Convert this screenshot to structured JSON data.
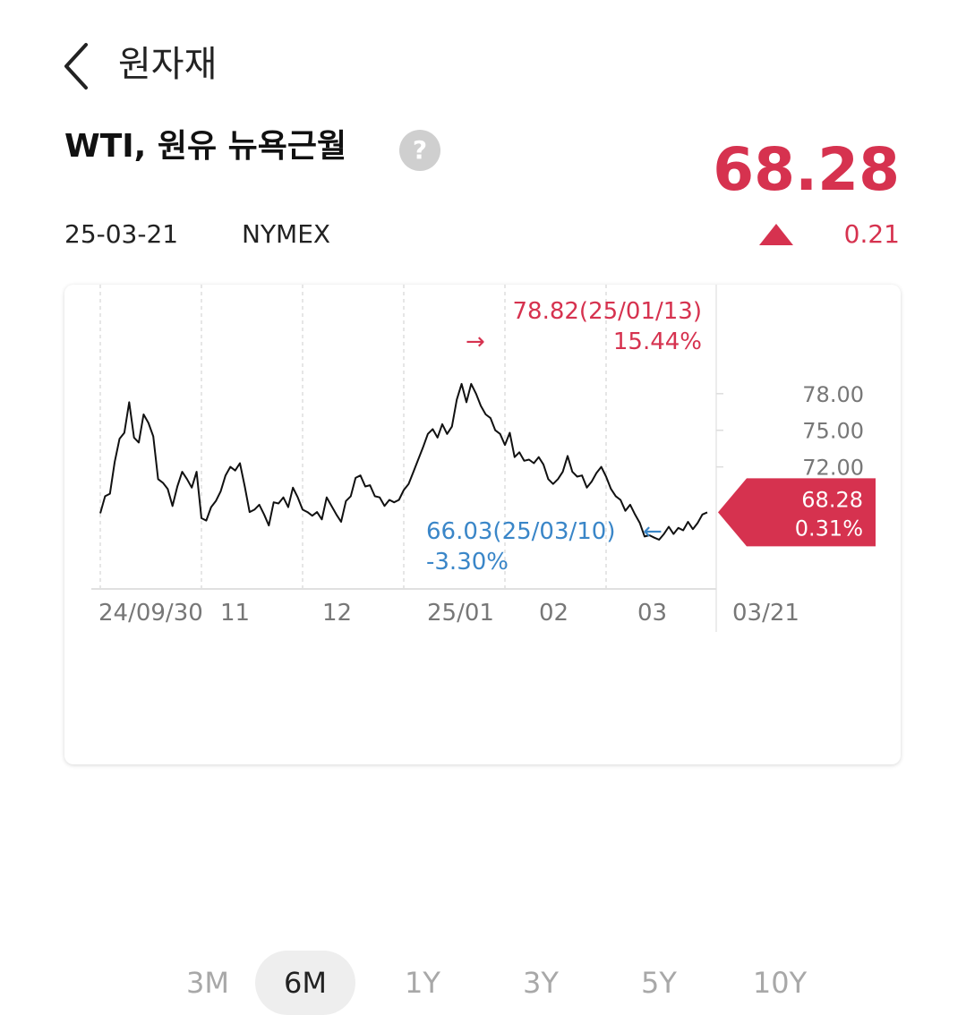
{
  "header": {
    "title": "원자재"
  },
  "instrument": {
    "name": "WTI, 원유 뉴욕근월",
    "help_label": "?",
    "price": "68.28",
    "date": "25-03-21",
    "exchange": "NYMEX",
    "change": "0.21",
    "change_direction_icon": "triangle-up-icon"
  },
  "colors": {
    "up": "#d6324f",
    "down": "#3a86c8",
    "line": "#111111",
    "grid": "#dddddd",
    "axis_text": "#777777"
  },
  "chart_data": {
    "type": "line",
    "x_tick_labels": [
      "24/09/30",
      "11",
      "12",
      "25/01",
      "02",
      "03",
      "03/21"
    ],
    "y_tick_labels": [
      "78.00",
      "75.00",
      "72.00"
    ],
    "y_ticks": [
      78,
      75,
      72
    ],
    "ylim": [
      62,
      84
    ],
    "series": [
      {
        "values": [
          68.2,
          69.6,
          69.8,
          72.4,
          74.3,
          74.8,
          77.3,
          74.4,
          74.0,
          76.3,
          75.6,
          74.5,
          71.0,
          70.7,
          70.2,
          68.8,
          70.4,
          71.6,
          71.0,
          70.3,
          71.6,
          67.8,
          67.6,
          68.7,
          69.2,
          70.0,
          71.3,
          72.0,
          71.7,
          72.3,
          70.4,
          68.3,
          68.5,
          68.9,
          68.1,
          67.2,
          69.1,
          69.0,
          69.5,
          68.7,
          70.3,
          69.5,
          68.5,
          68.3,
          68.0,
          68.3,
          67.7,
          69.5,
          68.8,
          68.1,
          67.5,
          69.2,
          69.6,
          71.1,
          71.3,
          70.4,
          70.5,
          69.6,
          69.5,
          68.8,
          69.3,
          69.1,
          69.3,
          70.1,
          70.6,
          71.6,
          72.6,
          73.6,
          74.7,
          75.1,
          74.4,
          75.5,
          74.7,
          75.3,
          77.5,
          78.8,
          77.3,
          78.8,
          78.0,
          77.0,
          76.3,
          76.0,
          75.0,
          74.7,
          73.8,
          74.8,
          72.8,
          73.2,
          72.5,
          72.6,
          72.3,
          72.8,
          72.2,
          71.0,
          70.6,
          71.0,
          71.6,
          72.9,
          71.6,
          71.2,
          71.3,
          70.3,
          70.8,
          71.5,
          72.0,
          71.2,
          70.2,
          69.6,
          69.3,
          68.4,
          68.9,
          68.1,
          67.4,
          66.3,
          66.4,
          66.2,
          66.03,
          66.5,
          67.1,
          66.5,
          67.0,
          66.8,
          67.5,
          66.9,
          67.4,
          68.1,
          68.28
        ]
      }
    ],
    "high": {
      "value": 78.82,
      "label": "78.82(25/01/13)",
      "pct": "15.44%"
    },
    "low": {
      "value": 66.03,
      "label": "66.03(25/03/10)",
      "pct": "-3.30%"
    },
    "current": {
      "value": 68.28,
      "label": "68.28",
      "pct": "0.31%"
    },
    "arrow_right": "→",
    "arrow_left": "←",
    "grid": true
  },
  "periods": [
    {
      "label": "3M",
      "active": false
    },
    {
      "label": "6M",
      "active": true
    },
    {
      "label": "1Y",
      "active": false
    },
    {
      "label": "3Y",
      "active": false
    },
    {
      "label": "5Y",
      "active": false
    },
    {
      "label": "10Y",
      "active": false
    }
  ]
}
